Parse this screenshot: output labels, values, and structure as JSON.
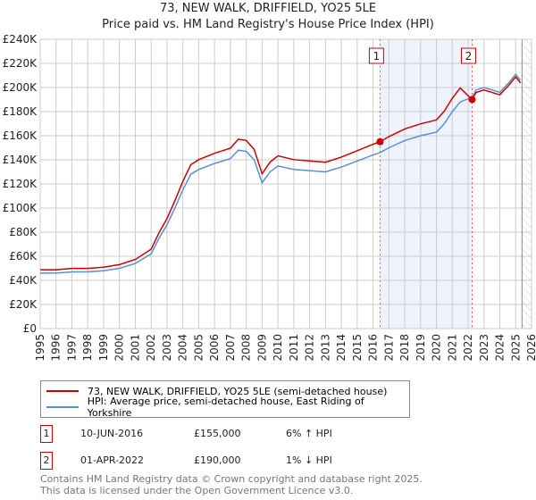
{
  "chart_data": {
    "type": "line",
    "title": "73, NEW WALK, DRIFFIELD, YO25 5LE",
    "subtitle": "Price paid vs. HM Land Registry's House Price Index (HPI)",
    "ylim": [
      0,
      240000
    ],
    "xlim": [
      1995,
      2026
    ],
    "yticks": [
      "£0",
      "£20K",
      "£40K",
      "£60K",
      "£80K",
      "£100K",
      "£120K",
      "£140K",
      "£160K",
      "£180K",
      "£200K",
      "£220K",
      "£240K"
    ],
    "xticks": [
      "1995",
      "1996",
      "1997",
      "1998",
      "1999",
      "2000",
      "2001",
      "2002",
      "2003",
      "2004",
      "2005",
      "2006",
      "2007",
      "2008",
      "2009",
      "2010",
      "2011",
      "2012",
      "2013",
      "2014",
      "2015",
      "2016",
      "2017",
      "2018",
      "2019",
      "2020",
      "2021",
      "2022",
      "2023",
      "2024",
      "2025",
      "2026"
    ],
    "grid": true,
    "hpi_series": {
      "name": "HPI: Average price, semi-detached house, East Riding of Yorkshire",
      "color": "#5b8fd4",
      "x": [
        1995,
        1996,
        1997,
        1998,
        1999,
        2000,
        2001,
        2002,
        2002.5,
        2003,
        2003.5,
        2004,
        2004.5,
        2005,
        2006,
        2007,
        2007.5,
        2008,
        2008.5,
        2009,
        2009.5,
        2010,
        2011,
        2012,
        2013,
        2014,
        2015,
        2016,
        2016.44,
        2017,
        2018,
        2019,
        2020,
        2020.5,
        2021,
        2021.5,
        2022.25,
        2022.5,
        2023,
        2024,
        2024.5,
        2025,
        2025.3
      ],
      "y": [
        46000,
        46000,
        47000,
        47000,
        48000,
        50000,
        54000,
        62000,
        75000,
        86000,
        100000,
        115000,
        128000,
        132000,
        137000,
        141000,
        148000,
        147000,
        140000,
        121000,
        130000,
        135000,
        132000,
        131000,
        130000,
        134000,
        139000,
        144000,
        146000,
        150000,
        156000,
        160000,
        163000,
        170000,
        180000,
        188000,
        192000,
        198000,
        200000,
        196000,
        203000,
        211000,
        206000
      ]
    },
    "property_series": {
      "name": "73, NEW WALK, DRIFFIELD, YO25 5LE (semi-detached house)",
      "color": "#cc0000"
    },
    "sales": [
      {
        "id": "1",
        "x": 2016.44,
        "date": "10-JUN-2016",
        "price": 155000,
        "price_label": "£155,000",
        "hpi_note": "6% ↑ HPI"
      },
      {
        "id": "2",
        "x": 2022.25,
        "date": "01-APR-2022",
        "price": 190000,
        "price_label": "£190,000",
        "hpi_note": "1% ↓ HPI"
      }
    ],
    "forecast_start": 2025.4
  },
  "footer": {
    "line1": "Contains HM Land Registry data © Crown copyright and database right 2025.",
    "line2": "This data is licensed under the Open Government Licence v3.0."
  }
}
